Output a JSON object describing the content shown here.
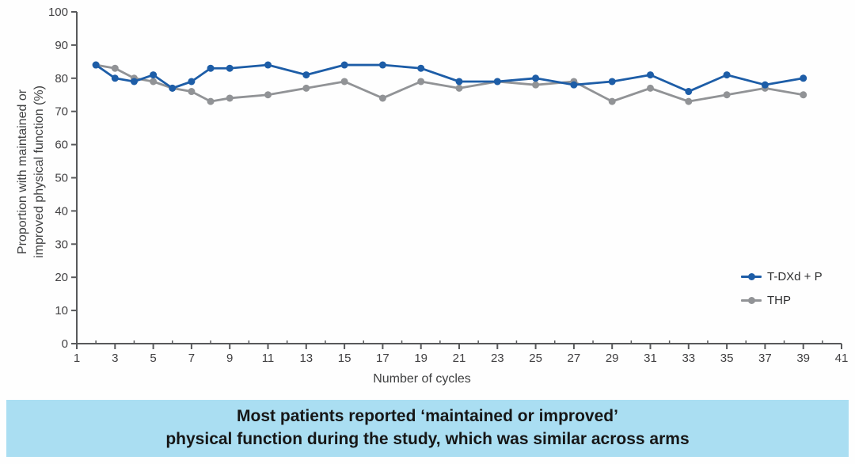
{
  "chart_data": {
    "type": "line",
    "title": "",
    "xlabel": "Number of cycles",
    "ylabel_lines": [
      "Proportion with maintained or",
      "improved physical function (%)"
    ],
    "xlim": [
      1,
      41
    ],
    "ylim": [
      0,
      100
    ],
    "y_tick_step": 10,
    "x_major_tick_labels": [
      1,
      3,
      5,
      7,
      9,
      11,
      13,
      15,
      17,
      19,
      21,
      23,
      25,
      27,
      29,
      31,
      33,
      35,
      37,
      39,
      41
    ],
    "grid": false,
    "legend_position": "right-middle",
    "x": [
      2,
      3,
      4,
      5,
      6,
      7,
      8,
      9,
      11,
      13,
      15,
      17,
      19,
      21,
      23,
      25,
      27,
      29,
      31,
      33,
      35,
      37,
      39
    ],
    "series": [
      {
        "name": "THP",
        "color": "#919396",
        "values": [
          84,
          83,
          80,
          79,
          77,
          76,
          73,
          74,
          75,
          77,
          79,
          74,
          79,
          77,
          79,
          78,
          79,
          73,
          77,
          73,
          75,
          77,
          75
        ]
      },
      {
        "name": "T-DXd + P",
        "color": "#1d5da7",
        "values": [
          84,
          80,
          79,
          81,
          77,
          79,
          83,
          83,
          84,
          81,
          84,
          84,
          83,
          79,
          79,
          80,
          78,
          79,
          81,
          76,
          81,
          78,
          80
        ]
      }
    ]
  },
  "axis": {
    "color": "#58595b",
    "tick_label_color": "#414042"
  },
  "legend": {
    "items": [
      {
        "label": "T-DXd + P",
        "color": "#1d5da7"
      },
      {
        "label": "THP",
        "color": "#919396"
      }
    ]
  },
  "banner": {
    "line1": "Most patients reported ‘maintained or improved’",
    "line2": "physical function during the study, which was similar across arms",
    "background": "#aadef2",
    "text_color": "#161616"
  }
}
